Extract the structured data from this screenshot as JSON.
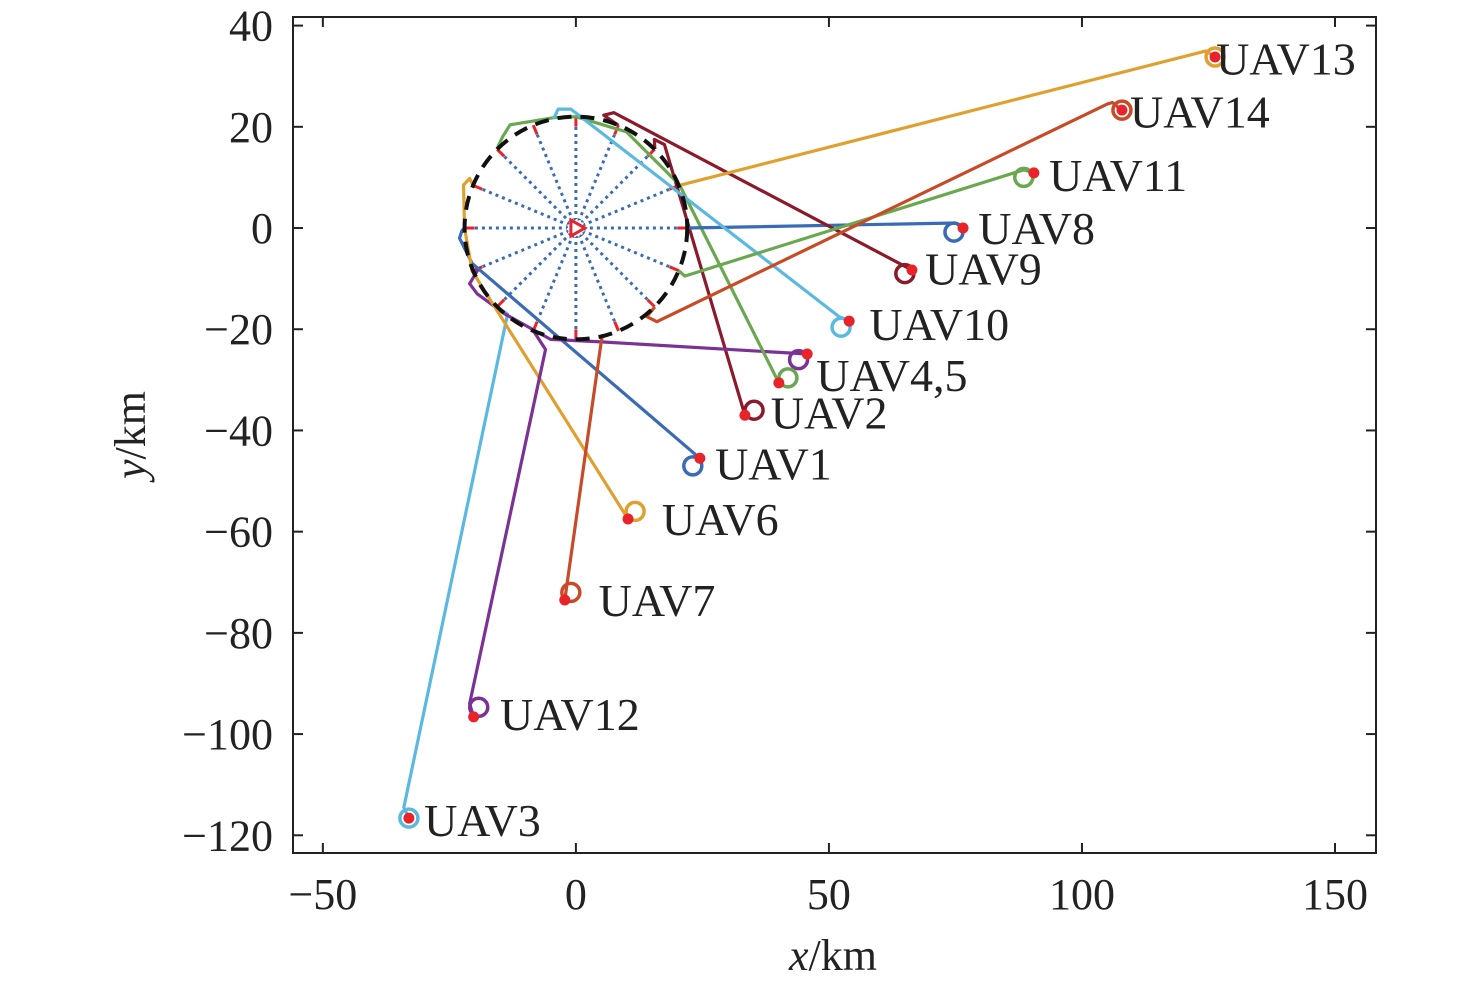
{
  "chart_data": {
    "type": "line",
    "title": "",
    "xlabel_var": "x",
    "xlabel_unit": "/km",
    "ylabel_var": "y",
    "ylabel_unit": "/km",
    "xlim": [
      -55.9,
      158.1
    ],
    "ylim": [
      -123.5,
      41.7
    ],
    "xticks": [
      -50,
      0,
      50,
      100,
      150
    ],
    "xtick_labels": [
      "−50",
      "0",
      "50",
      "100",
      "150"
    ],
    "yticks": [
      40,
      20,
      0,
      -20,
      -40,
      -60,
      -80,
      -100,
      -120
    ],
    "ytick_labels": [
      "40",
      "20",
      "0",
      "−20",
      "−40",
      "−60",
      "−80",
      "−100",
      "−120"
    ],
    "grid": false,
    "target_circle": {
      "center": [
        0,
        0
      ],
      "radius": 22,
      "spokes": 16,
      "style": "dashed",
      "color": "#111111",
      "spoke_color": "#3a6bb5",
      "marker_color": "#e8242a"
    },
    "series": [
      {
        "name": "UAV1",
        "color": "#3a6bb5",
        "start": [
          23.1,
          -47.0
        ],
        "points": [
          [
            24.5,
            -45.5
          ],
          [
            -20.5,
            -7
          ],
          [
            -23,
            -2
          ],
          [
            -22.5,
            -0.5
          ],
          [
            -22,
            0
          ]
        ]
      },
      {
        "name": "UAV2",
        "color": "#8b1a2b",
        "start": [
          35.2,
          -36.0
        ],
        "points": [
          [
            33.4,
            -37
          ],
          [
            17.5,
            16.5
          ],
          [
            15.5,
            17.5
          ],
          [
            15.6,
            15.6
          ]
        ]
      },
      {
        "name": "UAV3",
        "color": "#5bb8e0",
        "start": [
          -33.0,
          -116.6
        ],
        "points": [
          [
            -33,
            -116.6
          ],
          [
            -34,
            -114.5
          ],
          [
            -13.5,
            -17
          ],
          [
            -15.6,
            -15.6
          ]
        ]
      },
      {
        "name": "UAV4",
        "color": "#7b3294",
        "start": [
          44.0,
          -26.0
        ],
        "points": [
          [
            45.7,
            -24.9
          ],
          [
            5,
            -22.5
          ],
          [
            -5,
            -22
          ],
          [
            -14,
            -17
          ],
          [
            -19.5,
            -13
          ],
          [
            -21,
            -11
          ],
          [
            -19.5,
            -8.5
          ],
          [
            -20.3,
            -8.4
          ]
        ]
      },
      {
        "name": "UAV5",
        "color": "#6aa84f",
        "start": [
          41.9,
          -29.6
        ],
        "points": [
          [
            40.1,
            -30.6
          ],
          [
            20.5,
            8.5
          ],
          [
            17,
            12
          ],
          [
            10,
            19
          ],
          [
            0,
            22
          ],
          [
            -4.4,
            21.8
          ],
          [
            -13,
            20.4
          ],
          [
            -14.5,
            18
          ],
          [
            -15.6,
            15.6
          ]
        ]
      },
      {
        "name": "UAV6",
        "color": "#e0a030",
        "start": [
          11.7,
          -56.0
        ],
        "points": [
          [
            10.3,
            -57.5
          ],
          [
            -20.5,
            -8.5
          ],
          [
            -22,
            0
          ],
          [
            -22.2,
            8.5
          ],
          [
            -21,
            9.8
          ],
          [
            -20.3,
            8.4
          ]
        ]
      },
      {
        "name": "UAV7",
        "color": "#c84b27",
        "start": [
          -1.0,
          -72.0
        ],
        "points": [
          [
            -2.2,
            -73.5
          ],
          [
            5,
            -22.5
          ],
          [
            5.2,
            -21.5
          ]
        ]
      },
      {
        "name": "UAV8",
        "color": "#3a6bb5",
        "start": [
          74.7,
          -0.8
        ],
        "points": [
          [
            76.5,
            0
          ],
          [
            75,
            1
          ],
          [
            22,
            0
          ]
        ]
      },
      {
        "name": "UAV9",
        "color": "#8b1a2b",
        "start": [
          65.0,
          -9.0
        ],
        "points": [
          [
            66.4,
            -8.3
          ],
          [
            7.5,
            22.8
          ],
          [
            5.5,
            22.3
          ],
          [
            8.4,
            20.3
          ]
        ]
      },
      {
        "name": "UAV10",
        "color": "#5bb8e0",
        "start": [
          52.4,
          -19.6
        ],
        "points": [
          [
            54,
            -18.4
          ],
          [
            52,
            -17.5
          ],
          [
            -1,
            23.5
          ],
          [
            -3.5,
            23.5
          ],
          [
            -4.4,
            21.6
          ]
        ]
      },
      {
        "name": "UAV11",
        "color": "#6aa84f",
        "start": [
          88.5,
          10.0
        ],
        "points": [
          [
            90.5,
            10.9
          ],
          [
            88.5,
            11.5
          ],
          [
            21.5,
            -9.5
          ],
          [
            20.3,
            -8.4
          ]
        ]
      },
      {
        "name": "UAV12",
        "color": "#7b3294",
        "start": [
          -19.2,
          -94.7
        ],
        "points": [
          [
            -20.2,
            -96.6
          ],
          [
            -21,
            -94
          ],
          [
            -6,
            -24
          ],
          [
            -8.4,
            -20.3
          ]
        ]
      },
      {
        "name": "UAV13",
        "color": "#e0a030",
        "start": [
          126.3,
          33.8
        ],
        "points": [
          [
            126.3,
            33.8
          ],
          [
            124.5,
            35
          ],
          [
            20.3,
            8.4
          ]
        ]
      },
      {
        "name": "UAV14",
        "color": "#c84b27",
        "start": [
          107.9,
          23.3
        ],
        "points": [
          [
            107.9,
            23.3
          ],
          [
            106,
            24.8
          ],
          [
            105,
            24.5
          ],
          [
            16,
            -18.5
          ],
          [
            14,
            -17.5
          ],
          [
            15.6,
            -15.6
          ]
        ]
      }
    ],
    "annotations": [
      {
        "text": "UAV13",
        "at": [
          126.5,
          33.5
        ]
      },
      {
        "text": "UAV14",
        "at": [
          109.5,
          23.0
        ]
      },
      {
        "text": "UAV11",
        "at": [
          93.5,
          10.5
        ]
      },
      {
        "text": "UAV8",
        "at": [
          79.5,
          0.0
        ]
      },
      {
        "text": "UAV9",
        "at": [
          69.0,
          -8.0
        ]
      },
      {
        "text": "UAV10",
        "at": [
          58.0,
          -19.0
        ]
      },
      {
        "text": "UAV4,5",
        "at": [
          47.5,
          -29.0
        ]
      },
      {
        "text": "UAV2",
        "at": [
          38.5,
          -36.5
        ]
      },
      {
        "text": "UAV1",
        "at": [
          27.5,
          -46.5
        ]
      },
      {
        "text": "UAV6",
        "at": [
          17.0,
          -57.5
        ]
      },
      {
        "text": "UAV7",
        "at": [
          4.5,
          -73.5
        ]
      },
      {
        "text": "UAV12",
        "at": [
          -15.0,
          -96.0
        ]
      },
      {
        "text": "UAV3",
        "at": [
          -30.0,
          -117.0
        ]
      }
    ],
    "endpoint_color": "#e8242a"
  }
}
